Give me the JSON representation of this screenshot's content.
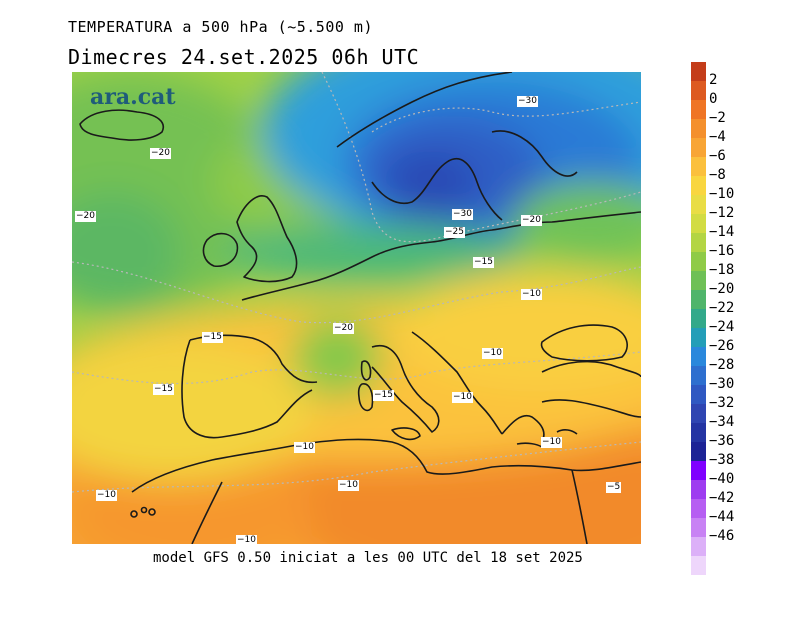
{
  "header": {
    "line1": "TEMPERATURA a 500 hPa (~5.500 m)",
    "line2": "Dimecres  24.set.2025 06h UTC"
  },
  "footer": {
    "model": "model GFS 0.50 iniciat a les 00 UTC del 18 set 2025"
  },
  "logo": {
    "text": "ara.cat"
  },
  "legend": {
    "colors": [
      "#c43d1a",
      "#dd5a21",
      "#ef7525",
      "#f4902d",
      "#f8a535",
      "#fbc03d",
      "#f9d640",
      "#e9dd45",
      "#d2dc43",
      "#b3d544",
      "#8fcb47",
      "#6ec056",
      "#4fb56b",
      "#32a98a",
      "#239eb8",
      "#2a88dc",
      "#2e6fcf",
      "#2f58c2",
      "#2f45b2",
      "#2434a3",
      "#1c2396",
      "#7f00ff",
      "#9e3cf0",
      "#b65ef2",
      "#c882f4",
      "#dcb0f8",
      "#eed6fb"
    ],
    "labels": [
      "2",
      "0",
      "−2",
      "−4",
      "−6",
      "−8",
      "−10",
      "−12",
      "−14",
      "−16",
      "−18",
      "−20",
      "−22",
      "−24",
      "−26",
      "−28",
      "−30",
      "−32",
      "−34",
      "−36",
      "−38",
      "−40",
      "−42",
      "−44",
      "−46"
    ]
  },
  "contour_labels": [
    {
      "text": "−30"
    },
    {
      "text": "−20"
    },
    {
      "text": "−20"
    },
    {
      "text": "−30"
    },
    {
      "text": "−20"
    },
    {
      "text": "−25"
    },
    {
      "text": "−15"
    },
    {
      "text": "−10"
    },
    {
      "text": "−15"
    },
    {
      "text": "−20"
    },
    {
      "text": "−10"
    },
    {
      "text": "−15"
    },
    {
      "text": "−15"
    },
    {
      "text": "−10"
    },
    {
      "text": "−10"
    },
    {
      "text": "−10"
    },
    {
      "text": "−10"
    },
    {
      "text": "−10"
    },
    {
      "text": "−5"
    },
    {
      "text": "−10"
    }
  ]
}
